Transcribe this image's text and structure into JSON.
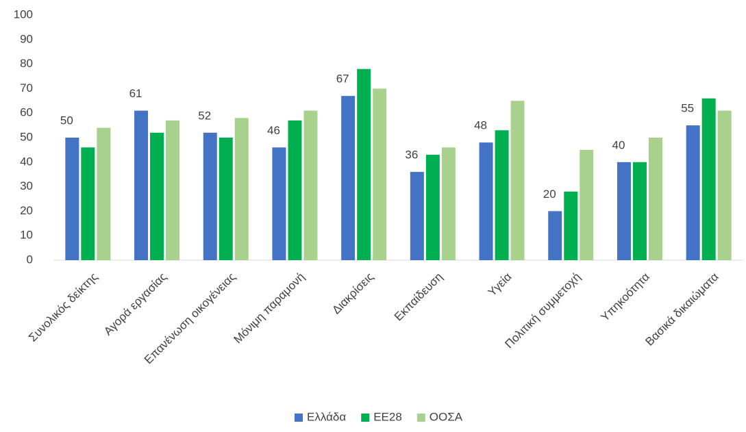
{
  "chart_data": {
    "type": "bar",
    "categories": [
      "Συνολικός δείκτης",
      "Αγορά εργασίας",
      "Επανένωση οικογένειας",
      "Μόνιμη παραμονή",
      "Διακρίσεις",
      "Εκπαίδευση",
      "Υγεία",
      "Πολιτική συμμετοχή",
      "Υπηκοότητα",
      "Βασικά δικαιώματα"
    ],
    "series": [
      {
        "name": "Ελλάδα",
        "color": "#4472c4",
        "values": [
          50,
          61,
          52,
          46,
          67,
          36,
          48,
          20,
          40,
          55
        ],
        "data_labels": true
      },
      {
        "name": "ΕΕ28",
        "color": "#00b050",
        "values": [
          46,
          52,
          50,
          57,
          78,
          43,
          53,
          28,
          40,
          66
        ]
      },
      {
        "name": "ΟΟΣΑ",
        "color": "#a9d18e",
        "values": [
          54,
          57,
          58,
          61,
          70,
          46,
          65,
          45,
          50,
          61
        ]
      }
    ],
    "ylim": [
      0,
      100
    ],
    "yticks": [
      0,
      10,
      20,
      30,
      40,
      50,
      60,
      70,
      80,
      90,
      100
    ],
    "legend": "bottom"
  }
}
